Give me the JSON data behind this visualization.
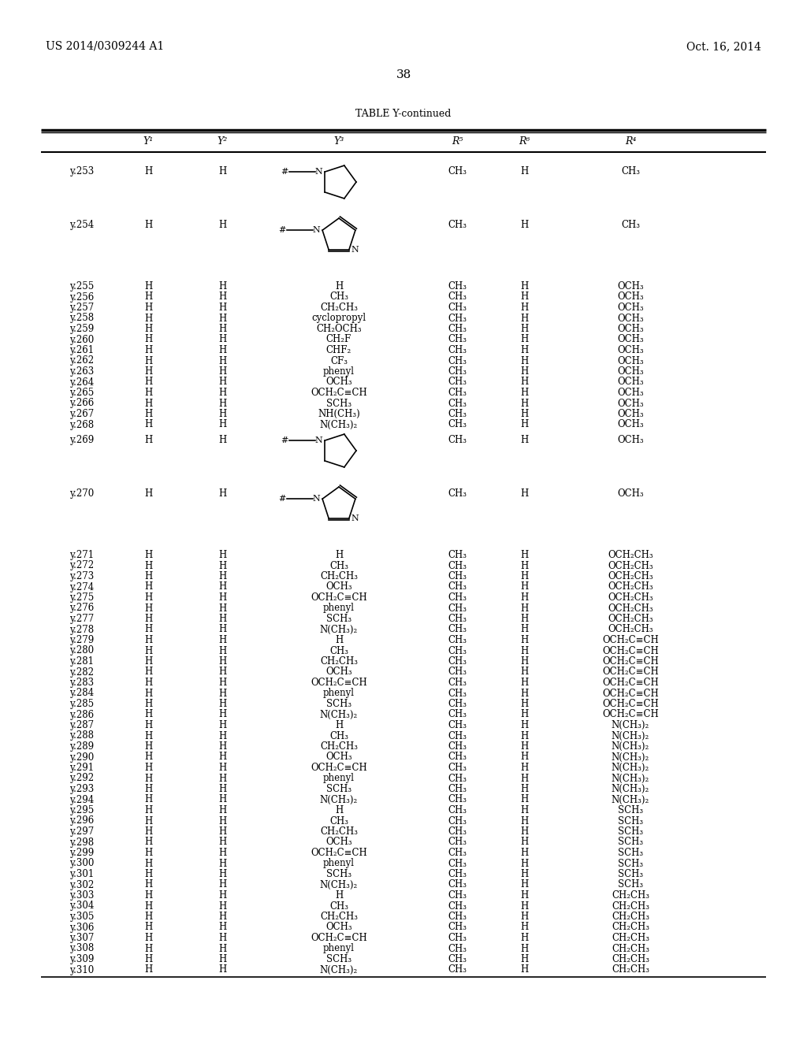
{
  "patent_number": "US 2014/0309244 A1",
  "date": "Oct. 16, 2014",
  "page_number": "38",
  "table_title": "TABLE Y-continued",
  "background": "#ffffff",
  "text_color": "#000000",
  "rows_simple_1": [
    [
      "y.255",
      "H",
      "H",
      "H",
      "CH₃",
      "H",
      "OCH₃"
    ],
    [
      "y.256",
      "H",
      "H",
      "CH₃",
      "CH₃",
      "H",
      "OCH₃"
    ],
    [
      "y.257",
      "H",
      "H",
      "CH₂CH₃",
      "CH₃",
      "H",
      "OCH₃"
    ],
    [
      "y.258",
      "H",
      "H",
      "cyclopropyl",
      "CH₃",
      "H",
      "OCH₃"
    ],
    [
      "y.259",
      "H",
      "H",
      "CH₂OCH₃",
      "CH₃",
      "H",
      "OCH₃"
    ],
    [
      "y.260",
      "H",
      "H",
      "CH₂F",
      "CH₃",
      "H",
      "OCH₃"
    ],
    [
      "y.261",
      "H",
      "H",
      "CHF₂",
      "CH₃",
      "H",
      "OCH₃"
    ],
    [
      "y.262",
      "H",
      "H",
      "CF₃",
      "CH₃",
      "H",
      "OCH₃"
    ],
    [
      "y.263",
      "H",
      "H",
      "phenyl",
      "CH₃",
      "H",
      "OCH₃"
    ],
    [
      "y.264",
      "H",
      "H",
      "OCH₃",
      "CH₃",
      "H",
      "OCH₃"
    ],
    [
      "y.265",
      "H",
      "H",
      "OCH₂C≡CH",
      "CH₃",
      "H",
      "OCH₃"
    ],
    [
      "y.266",
      "H",
      "H",
      "SCH₃",
      "CH₃",
      "H",
      "OCH₃"
    ],
    [
      "y.267",
      "H",
      "H",
      "NH(CH₃)",
      "CH₃",
      "H",
      "OCH₃"
    ],
    [
      "y.268",
      "H",
      "H",
      "N(CH₃)₂",
      "CH₃",
      "H",
      "OCH₃"
    ]
  ],
  "rows_simple_2": [
    [
      "y.271",
      "H",
      "H",
      "H",
      "CH₃",
      "H",
      "OCH₂CH₃"
    ],
    [
      "y.272",
      "H",
      "H",
      "CH₃",
      "CH₃",
      "H",
      "OCH₂CH₃"
    ],
    [
      "y.273",
      "H",
      "H",
      "CH₂CH₃",
      "CH₃",
      "H",
      "OCH₂CH₃"
    ],
    [
      "y.274",
      "H",
      "H",
      "OCH₃",
      "CH₃",
      "H",
      "OCH₂CH₃"
    ],
    [
      "y.275",
      "H",
      "H",
      "OCH₂C≡CH",
      "CH₃",
      "H",
      "OCH₂CH₃"
    ],
    [
      "y.276",
      "H",
      "H",
      "phenyl",
      "CH₃",
      "H",
      "OCH₂CH₃"
    ],
    [
      "y.277",
      "H",
      "H",
      "SCH₃",
      "CH₃",
      "H",
      "OCH₂CH₃"
    ],
    [
      "y.278",
      "H",
      "H",
      "N(CH₃)₂",
      "CH₃",
      "H",
      "OCH₂CH₃"
    ],
    [
      "y.279",
      "H",
      "H",
      "H",
      "CH₃",
      "H",
      "OCH₂C≡CH"
    ],
    [
      "y.280",
      "H",
      "H",
      "CH₃",
      "CH₃",
      "H",
      "OCH₂C≡CH"
    ],
    [
      "y.281",
      "H",
      "H",
      "CH₂CH₃",
      "CH₃",
      "H",
      "OCH₂C≡CH"
    ],
    [
      "y.282",
      "H",
      "H",
      "OCH₃",
      "CH₃",
      "H",
      "OCH₂C≡CH"
    ],
    [
      "y.283",
      "H",
      "H",
      "OCH₂C≡CH",
      "CH₃",
      "H",
      "OCH₂C≡CH"
    ],
    [
      "y.284",
      "H",
      "H",
      "phenyl",
      "CH₃",
      "H",
      "OCH₂C≡CH"
    ],
    [
      "y.285",
      "H",
      "H",
      "SCH₃",
      "CH₃",
      "H",
      "OCH₂C≡CH"
    ],
    [
      "y.286",
      "H",
      "H",
      "N(CH₃)₂",
      "CH₃",
      "H",
      "OCH₂C≡CH"
    ],
    [
      "y.287",
      "H",
      "H",
      "H",
      "CH₃",
      "H",
      "N(CH₃)₂"
    ],
    [
      "y.288",
      "H",
      "H",
      "CH₃",
      "CH₃",
      "H",
      "N(CH₃)₂"
    ],
    [
      "y.289",
      "H",
      "H",
      "CH₂CH₃",
      "CH₃",
      "H",
      "N(CH₃)₂"
    ],
    [
      "y.290",
      "H",
      "H",
      "OCH₃",
      "CH₃",
      "H",
      "N(CH₃)₂"
    ],
    [
      "y.291",
      "H",
      "H",
      "OCH₂C≡CH",
      "CH₃",
      "H",
      "N(CH₃)₂"
    ],
    [
      "y.292",
      "H",
      "H",
      "phenyl",
      "CH₃",
      "H",
      "N(CH₃)₂"
    ],
    [
      "y.293",
      "H",
      "H",
      "SCH₃",
      "CH₃",
      "H",
      "N(CH₃)₂"
    ],
    [
      "y.294",
      "H",
      "H",
      "N(CH₃)₂",
      "CH₃",
      "H",
      "N(CH₃)₂"
    ],
    [
      "y.295",
      "H",
      "H",
      "H",
      "CH₃",
      "H",
      "SCH₃"
    ],
    [
      "y.296",
      "H",
      "H",
      "CH₃",
      "CH₃",
      "H",
      "SCH₃"
    ],
    [
      "y.297",
      "H",
      "H",
      "CH₂CH₃",
      "CH₃",
      "H",
      "SCH₃"
    ],
    [
      "y.298",
      "H",
      "H",
      "OCH₃",
      "CH₃",
      "H",
      "SCH₃"
    ],
    [
      "y.299",
      "H",
      "H",
      "OCH₂C≡CH",
      "CH₃",
      "H",
      "SCH₃"
    ],
    [
      "y.300",
      "H",
      "H",
      "phenyl",
      "CH₃",
      "H",
      "SCH₃"
    ],
    [
      "y.301",
      "H",
      "H",
      "SCH₃",
      "CH₃",
      "H",
      "SCH₃"
    ],
    [
      "y.302",
      "H",
      "H",
      "N(CH₃)₂",
      "CH₃",
      "H",
      "SCH₃"
    ],
    [
      "y.303",
      "H",
      "H",
      "H",
      "CH₃",
      "H",
      "CH₂CH₃"
    ],
    [
      "y.304",
      "H",
      "H",
      "CH₃",
      "CH₃",
      "H",
      "CH₂CH₃"
    ],
    [
      "y.305",
      "H",
      "H",
      "CH₂CH₃",
      "CH₃",
      "H",
      "CH₂CH₃"
    ],
    [
      "y.306",
      "H",
      "H",
      "OCH₃",
      "CH₃",
      "H",
      "CH₂CH₃"
    ],
    [
      "y.307",
      "H",
      "H",
      "OCH₂C≡CH",
      "CH₃",
      "H",
      "CH₂CH₃"
    ],
    [
      "y.308",
      "H",
      "H",
      "phenyl",
      "CH₃",
      "H",
      "CH₂CH₃"
    ],
    [
      "y.309",
      "H",
      "H",
      "SCH₃",
      "CH₃",
      "H",
      "CH₂CH₃"
    ],
    [
      "y.310",
      "H",
      "H",
      "N(CH₃)₂",
      "CH₃",
      "H",
      "CH₂CH₃"
    ]
  ]
}
